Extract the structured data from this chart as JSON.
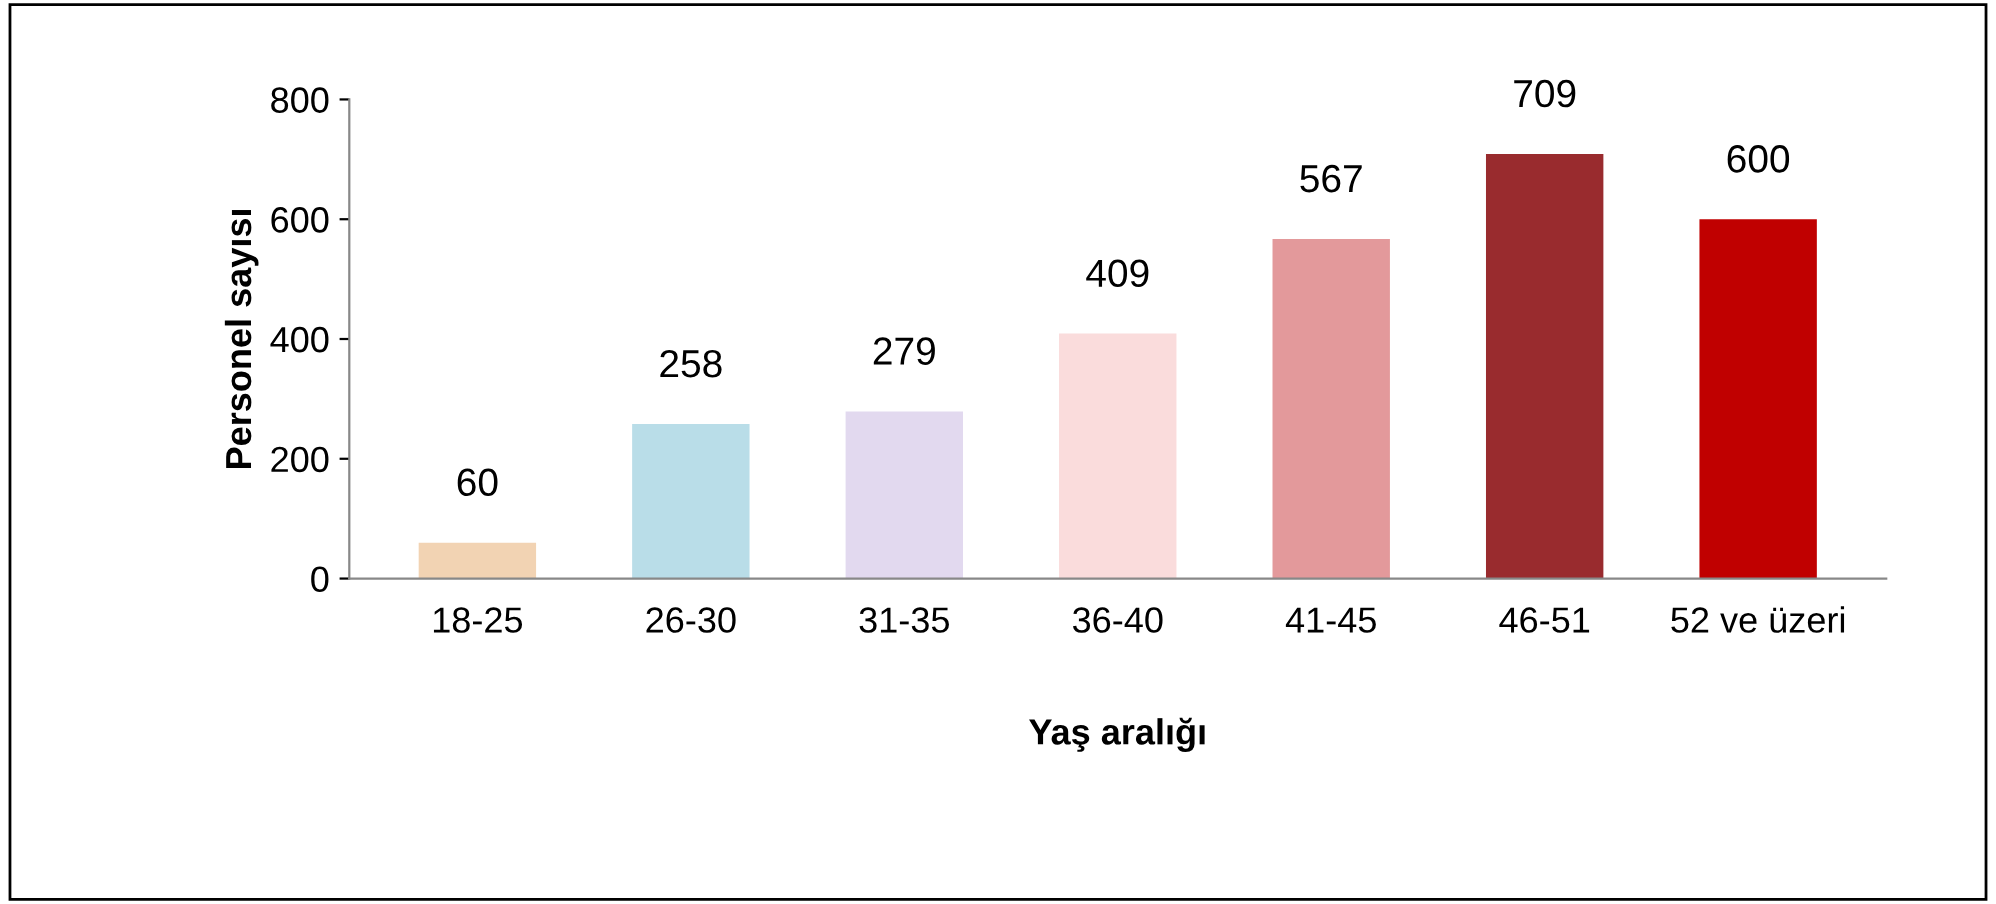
{
  "chart_data": {
    "type": "bar",
    "xlabel": "Yaş aralığı",
    "ylabel": "Personel sayısı",
    "categories": [
      "18-25",
      "26-30",
      "31-35",
      "36-40",
      "41-45",
      "46-51",
      "52 ve üzeri"
    ],
    "values": [
      60,
      258,
      279,
      409,
      567,
      709,
      600
    ],
    "colors": [
      "#f2d3b3",
      "#b9dde8",
      "#e2d9ef",
      "#fadcdc",
      "#e3999b",
      "#992b2e",
      "#c00000"
    ],
    "ylim": [
      0,
      800
    ],
    "yticks": [
      0,
      200,
      400,
      600,
      800
    ],
    "data_labels": true,
    "grid": false,
    "legend": false
  }
}
